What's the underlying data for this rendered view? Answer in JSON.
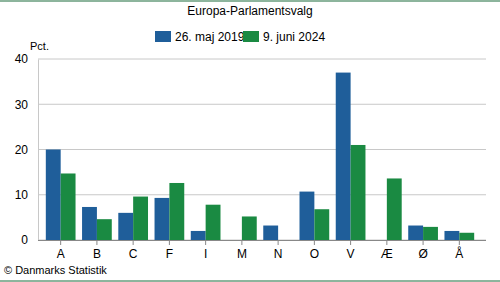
{
  "chart_data": {
    "type": "bar",
    "title": "Europa-Parlamentsvalg",
    "y_label": "Pct.",
    "source": "© Danmarks Statistik",
    "categories": [
      "A",
      "B",
      "C",
      "F",
      "I",
      "M",
      "N",
      "O",
      "V",
      "Æ",
      "Ø",
      "Å"
    ],
    "series": [
      {
        "name": "26. maj 2019",
        "color": "#1f5e9a",
        "values": [
          20.0,
          7.3,
          6.0,
          9.3,
          2.0,
          null,
          3.2,
          10.7,
          37.0,
          null,
          3.2,
          2.0
        ]
      },
      {
        "name": "9. juni 2024",
        "color": "#1a8a42",
        "values": [
          14.7,
          4.6,
          9.6,
          12.6,
          7.8,
          5.2,
          null,
          6.8,
          21.0,
          13.6,
          2.9,
          1.6
        ]
      }
    ],
    "ylim": [
      0,
      40
    ],
    "yticks": [
      0,
      10,
      20,
      30,
      40
    ],
    "grid": true,
    "legend": "top"
  }
}
